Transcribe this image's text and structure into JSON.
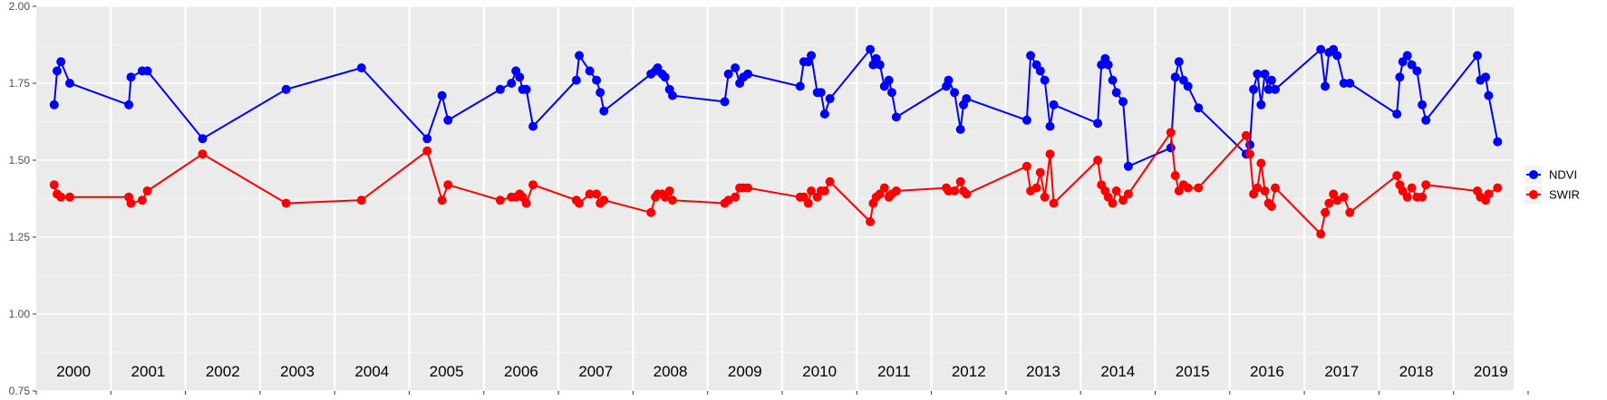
{
  "colors": {
    "NDVI": "#0000ff",
    "SWIR": "#ff0000",
    "panel": "#ebebeb",
    "grid": "#ffffff"
  },
  "chart_data": {
    "type": "line",
    "title": "",
    "xlabel": "",
    "ylabel": "",
    "ylim": [
      0.75,
      2.0
    ],
    "y_ticks": [
      "0.75",
      "1.00",
      "1.25",
      "1.50",
      "1.75",
      "2.00"
    ],
    "y_tick_values": [
      0.75,
      1.0,
      1.25,
      1.5,
      1.75,
      2.0
    ],
    "x_range": [
      2000.0,
      2020.0
    ],
    "year_labels": [
      "2000",
      "2001",
      "2002",
      "2003",
      "2004",
      "2005",
      "2006",
      "2007",
      "2008",
      "2009",
      "2010",
      "2011",
      "2012",
      "2013",
      "2014",
      "2015",
      "2016",
      "2017",
      "2018",
      "2019"
    ],
    "grid": true,
    "legend_position": "right",
    "series": [
      {
        "name": "NDVI",
        "color": "#0000ff",
        "points": [
          [
            2000.24,
            1.68
          ],
          [
            2000.28,
            1.79
          ],
          [
            2000.33,
            1.82
          ],
          [
            2000.45,
            1.75
          ],
          [
            2001.24,
            1.68
          ],
          [
            2001.27,
            1.77
          ],
          [
            2001.42,
            1.79
          ],
          [
            2001.49,
            1.79
          ],
          [
            2002.23,
            1.57
          ],
          [
            2003.35,
            1.73
          ],
          [
            2004.36,
            1.8
          ],
          [
            2005.24,
            1.57
          ],
          [
            2005.44,
            1.71
          ],
          [
            2005.52,
            1.63
          ],
          [
            2006.22,
            1.73
          ],
          [
            2006.37,
            1.75
          ],
          [
            2006.43,
            1.79
          ],
          [
            2006.48,
            1.77
          ],
          [
            2006.52,
            1.73
          ],
          [
            2006.57,
            1.73
          ],
          [
            2006.66,
            1.61
          ],
          [
            2007.24,
            1.76
          ],
          [
            2007.28,
            1.84
          ],
          [
            2007.42,
            1.79
          ],
          [
            2007.51,
            1.76
          ],
          [
            2007.56,
            1.72
          ],
          [
            2007.61,
            1.66
          ],
          [
            2008.24,
            1.78
          ],
          [
            2008.3,
            1.79
          ],
          [
            2008.33,
            1.8
          ],
          [
            2008.39,
            1.78
          ],
          [
            2008.43,
            1.77
          ],
          [
            2008.49,
            1.73
          ],
          [
            2008.53,
            1.71
          ],
          [
            2009.23,
            1.69
          ],
          [
            2009.28,
            1.78
          ],
          [
            2009.37,
            1.8
          ],
          [
            2009.43,
            1.75
          ],
          [
            2009.48,
            1.77
          ],
          [
            2009.54,
            1.78
          ],
          [
            2010.24,
            1.74
          ],
          [
            2010.29,
            1.82
          ],
          [
            2010.35,
            1.82
          ],
          [
            2010.39,
            1.84
          ],
          [
            2010.47,
            1.72
          ],
          [
            2010.52,
            1.72
          ],
          [
            2010.57,
            1.65
          ],
          [
            2010.64,
            1.7
          ],
          [
            2011.18,
            1.86
          ],
          [
            2011.22,
            1.81
          ],
          [
            2011.26,
            1.83
          ],
          [
            2011.31,
            1.81
          ],
          [
            2011.37,
            1.74
          ],
          [
            2011.43,
            1.76
          ],
          [
            2011.47,
            1.72
          ],
          [
            2011.53,
            1.64
          ],
          [
            2012.2,
            1.74
          ],
          [
            2012.23,
            1.76
          ],
          [
            2012.31,
            1.72
          ],
          [
            2012.39,
            1.6
          ],
          [
            2012.43,
            1.68
          ],
          [
            2012.47,
            1.7
          ],
          [
            2013.28,
            1.63
          ],
          [
            2013.33,
            1.84
          ],
          [
            2013.41,
            1.81
          ],
          [
            2013.46,
            1.79
          ],
          [
            2013.52,
            1.76
          ],
          [
            2013.59,
            1.61
          ],
          [
            2013.64,
            1.68
          ],
          [
            2014.23,
            1.62
          ],
          [
            2014.28,
            1.81
          ],
          [
            2014.33,
            1.83
          ],
          [
            2014.37,
            1.81
          ],
          [
            2014.43,
            1.76
          ],
          [
            2014.48,
            1.72
          ],
          [
            2014.57,
            1.69
          ],
          [
            2014.64,
            1.48
          ],
          [
            2015.21,
            1.54
          ],
          [
            2015.27,
            1.77
          ],
          [
            2015.32,
            1.82
          ],
          [
            2015.38,
            1.76
          ],
          [
            2015.44,
            1.74
          ],
          [
            2015.58,
            1.67
          ],
          [
            2016.22,
            1.52
          ],
          [
            2016.27,
            1.55
          ],
          [
            2016.32,
            1.73
          ],
          [
            2016.37,
            1.78
          ],
          [
            2016.42,
            1.68
          ],
          [
            2016.47,
            1.78
          ],
          [
            2016.52,
            1.73
          ],
          [
            2016.56,
            1.76
          ],
          [
            2016.61,
            1.73
          ],
          [
            2017.22,
            1.86
          ],
          [
            2017.28,
            1.74
          ],
          [
            2017.33,
            1.85
          ],
          [
            2017.39,
            1.86
          ],
          [
            2017.44,
            1.84
          ],
          [
            2017.53,
            1.75
          ],
          [
            2017.61,
            1.75
          ],
          [
            2018.24,
            1.65
          ],
          [
            2018.28,
            1.77
          ],
          [
            2018.32,
            1.82
          ],
          [
            2018.38,
            1.84
          ],
          [
            2018.44,
            1.81
          ],
          [
            2018.51,
            1.79
          ],
          [
            2018.58,
            1.68
          ],
          [
            2018.63,
            1.63
          ],
          [
            2019.32,
            1.84
          ],
          [
            2019.36,
            1.76
          ],
          [
            2019.43,
            1.77
          ],
          [
            2019.47,
            1.71
          ],
          [
            2019.59,
            1.56
          ]
        ]
      },
      {
        "name": "SWIR",
        "color": "#ff0000",
        "points": [
          [
            2000.24,
            1.42
          ],
          [
            2000.28,
            1.39
          ],
          [
            2000.33,
            1.38
          ],
          [
            2000.45,
            1.38
          ],
          [
            2001.24,
            1.38
          ],
          [
            2001.27,
            1.36
          ],
          [
            2001.42,
            1.37
          ],
          [
            2001.49,
            1.4
          ],
          [
            2002.23,
            1.52
          ],
          [
            2003.35,
            1.36
          ],
          [
            2004.36,
            1.37
          ],
          [
            2005.24,
            1.53
          ],
          [
            2005.44,
            1.37
          ],
          [
            2005.52,
            1.42
          ],
          [
            2006.22,
            1.37
          ],
          [
            2006.37,
            1.38
          ],
          [
            2006.43,
            1.38
          ],
          [
            2006.48,
            1.39
          ],
          [
            2006.52,
            1.38
          ],
          [
            2006.57,
            1.36
          ],
          [
            2006.66,
            1.42
          ],
          [
            2007.24,
            1.37
          ],
          [
            2007.28,
            1.36
          ],
          [
            2007.42,
            1.39
          ],
          [
            2007.51,
            1.39
          ],
          [
            2007.56,
            1.36
          ],
          [
            2007.61,
            1.37
          ],
          [
            2008.24,
            1.33
          ],
          [
            2008.3,
            1.38
          ],
          [
            2008.33,
            1.39
          ],
          [
            2008.39,
            1.39
          ],
          [
            2008.43,
            1.38
          ],
          [
            2008.49,
            1.4
          ],
          [
            2008.53,
            1.37
          ],
          [
            2009.23,
            1.36
          ],
          [
            2009.28,
            1.37
          ],
          [
            2009.37,
            1.38
          ],
          [
            2009.43,
            1.41
          ],
          [
            2009.48,
            1.41
          ],
          [
            2009.54,
            1.41
          ],
          [
            2010.24,
            1.38
          ],
          [
            2010.29,
            1.38
          ],
          [
            2010.35,
            1.36
          ],
          [
            2010.39,
            1.4
          ],
          [
            2010.47,
            1.38
          ],
          [
            2010.52,
            1.4
          ],
          [
            2010.57,
            1.4
          ],
          [
            2010.64,
            1.43
          ],
          [
            2011.18,
            1.3
          ],
          [
            2011.22,
            1.36
          ],
          [
            2011.26,
            1.38
          ],
          [
            2011.31,
            1.39
          ],
          [
            2011.37,
            1.41
          ],
          [
            2011.43,
            1.38
          ],
          [
            2011.47,
            1.39
          ],
          [
            2011.53,
            1.4
          ],
          [
            2012.2,
            1.41
          ],
          [
            2012.23,
            1.4
          ],
          [
            2012.31,
            1.4
          ],
          [
            2012.39,
            1.43
          ],
          [
            2012.43,
            1.4
          ],
          [
            2012.47,
            1.39
          ],
          [
            2013.28,
            1.48
          ],
          [
            2013.33,
            1.4
          ],
          [
            2013.41,
            1.41
          ],
          [
            2013.46,
            1.46
          ],
          [
            2013.52,
            1.38
          ],
          [
            2013.59,
            1.52
          ],
          [
            2013.64,
            1.36
          ],
          [
            2014.23,
            1.5
          ],
          [
            2014.28,
            1.42
          ],
          [
            2014.33,
            1.4
          ],
          [
            2014.37,
            1.38
          ],
          [
            2014.43,
            1.36
          ],
          [
            2014.48,
            1.4
          ],
          [
            2014.57,
            1.37
          ],
          [
            2014.64,
            1.39
          ],
          [
            2015.21,
            1.59
          ],
          [
            2015.27,
            1.45
          ],
          [
            2015.32,
            1.4
          ],
          [
            2015.38,
            1.42
          ],
          [
            2015.44,
            1.41
          ],
          [
            2015.58,
            1.41
          ],
          [
            2016.22,
            1.58
          ],
          [
            2016.27,
            1.52
          ],
          [
            2016.32,
            1.39
          ],
          [
            2016.37,
            1.41
          ],
          [
            2016.42,
            1.49
          ],
          [
            2016.47,
            1.4
          ],
          [
            2016.52,
            1.36
          ],
          [
            2016.56,
            1.35
          ],
          [
            2016.61,
            1.41
          ],
          [
            2017.22,
            1.26
          ],
          [
            2017.28,
            1.33
          ],
          [
            2017.33,
            1.36
          ],
          [
            2017.39,
            1.39
          ],
          [
            2017.44,
            1.37
          ],
          [
            2017.53,
            1.38
          ],
          [
            2017.61,
            1.33
          ],
          [
            2018.24,
            1.45
          ],
          [
            2018.28,
            1.42
          ],
          [
            2018.32,
            1.4
          ],
          [
            2018.38,
            1.38
          ],
          [
            2018.44,
            1.41
          ],
          [
            2018.51,
            1.38
          ],
          [
            2018.58,
            1.38
          ],
          [
            2018.63,
            1.42
          ],
          [
            2019.32,
            1.4
          ],
          [
            2019.36,
            1.38
          ],
          [
            2019.43,
            1.37
          ],
          [
            2019.47,
            1.39
          ],
          [
            2019.59,
            1.41
          ]
        ]
      }
    ]
  }
}
